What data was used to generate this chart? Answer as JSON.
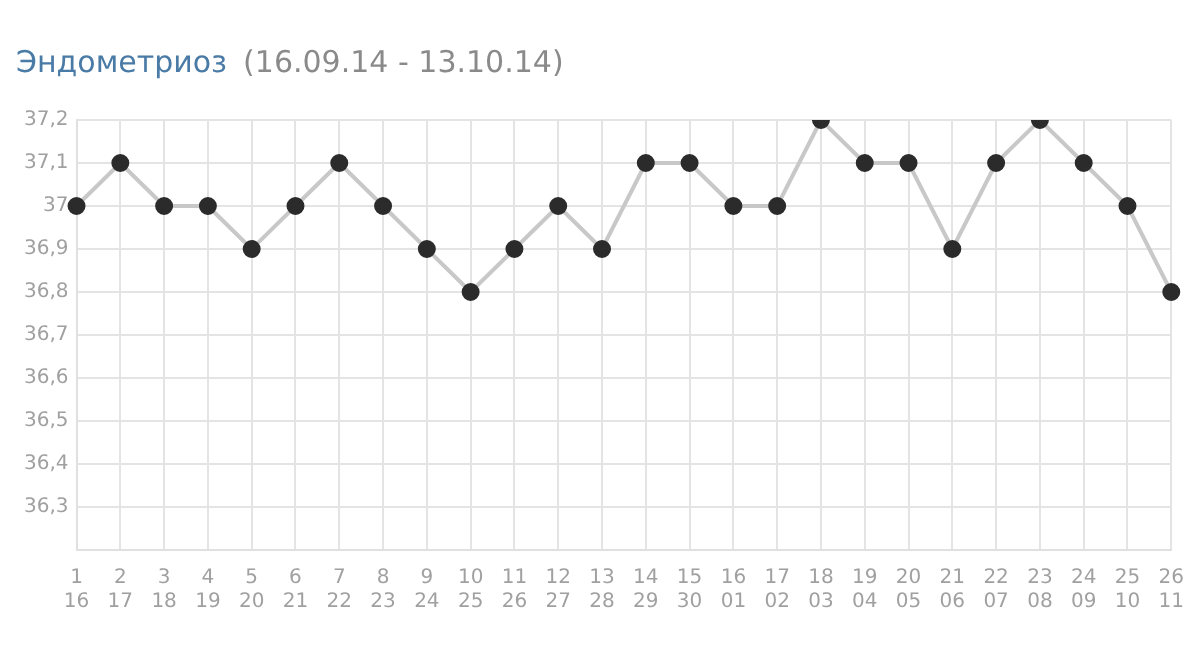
{
  "chart_data": {
    "type": "line",
    "title": "Эндометриоз",
    "subtitle": "(16.09.14 - 13.10.14)",
    "categories": [
      "1\n16",
      "2\n17",
      "3\n18",
      "4\n19",
      "5\n20",
      "6\n21",
      "7\n22",
      "8\n23",
      "9\n24",
      "10\n25",
      "11\n26",
      "12\n27",
      "13\n28",
      "14\n29",
      "15\n30",
      "16\n01",
      "17\n02",
      "18\n03",
      "19\n04",
      "20\n05",
      "21\n06",
      "22\n07",
      "23\n08",
      "24\n09",
      "25\n10",
      "26\n11"
    ],
    "series": [
      {
        "color": "#c8c8c8",
        "values": [
          37.0,
          37.1,
          37.0,
          37.0,
          36.9,
          37.0,
          37.1,
          37.0,
          36.9,
          36.8,
          36.9,
          37.0,
          36.9,
          37.1,
          37.1,
          37.0,
          37.0,
          37.2,
          37.1,
          37.1,
          36.9,
          37.1,
          37.2,
          37.1,
          37.0,
          36.8
        ]
      }
    ],
    "ylim": [
      36.2,
      37.2
    ],
    "yticks": [
      {
        "value": 36.3,
        "label": "36,3"
      },
      {
        "value": 36.4,
        "label": "36,4"
      },
      {
        "value": 36.5,
        "label": "36,5"
      },
      {
        "value": 36.6,
        "label": "36,6"
      },
      {
        "value": 36.7,
        "label": "36,7"
      },
      {
        "value": 36.8,
        "label": "36,8"
      },
      {
        "value": 36.9,
        "label": "36,9"
      },
      {
        "value": 37,
        "label": "37"
      },
      {
        "value": 37.1,
        "label": "37,1"
      },
      {
        "value": 37.2,
        "label": "37,2"
      }
    ],
    "grid": true,
    "marker": "circle",
    "line_style": "solid"
  }
}
